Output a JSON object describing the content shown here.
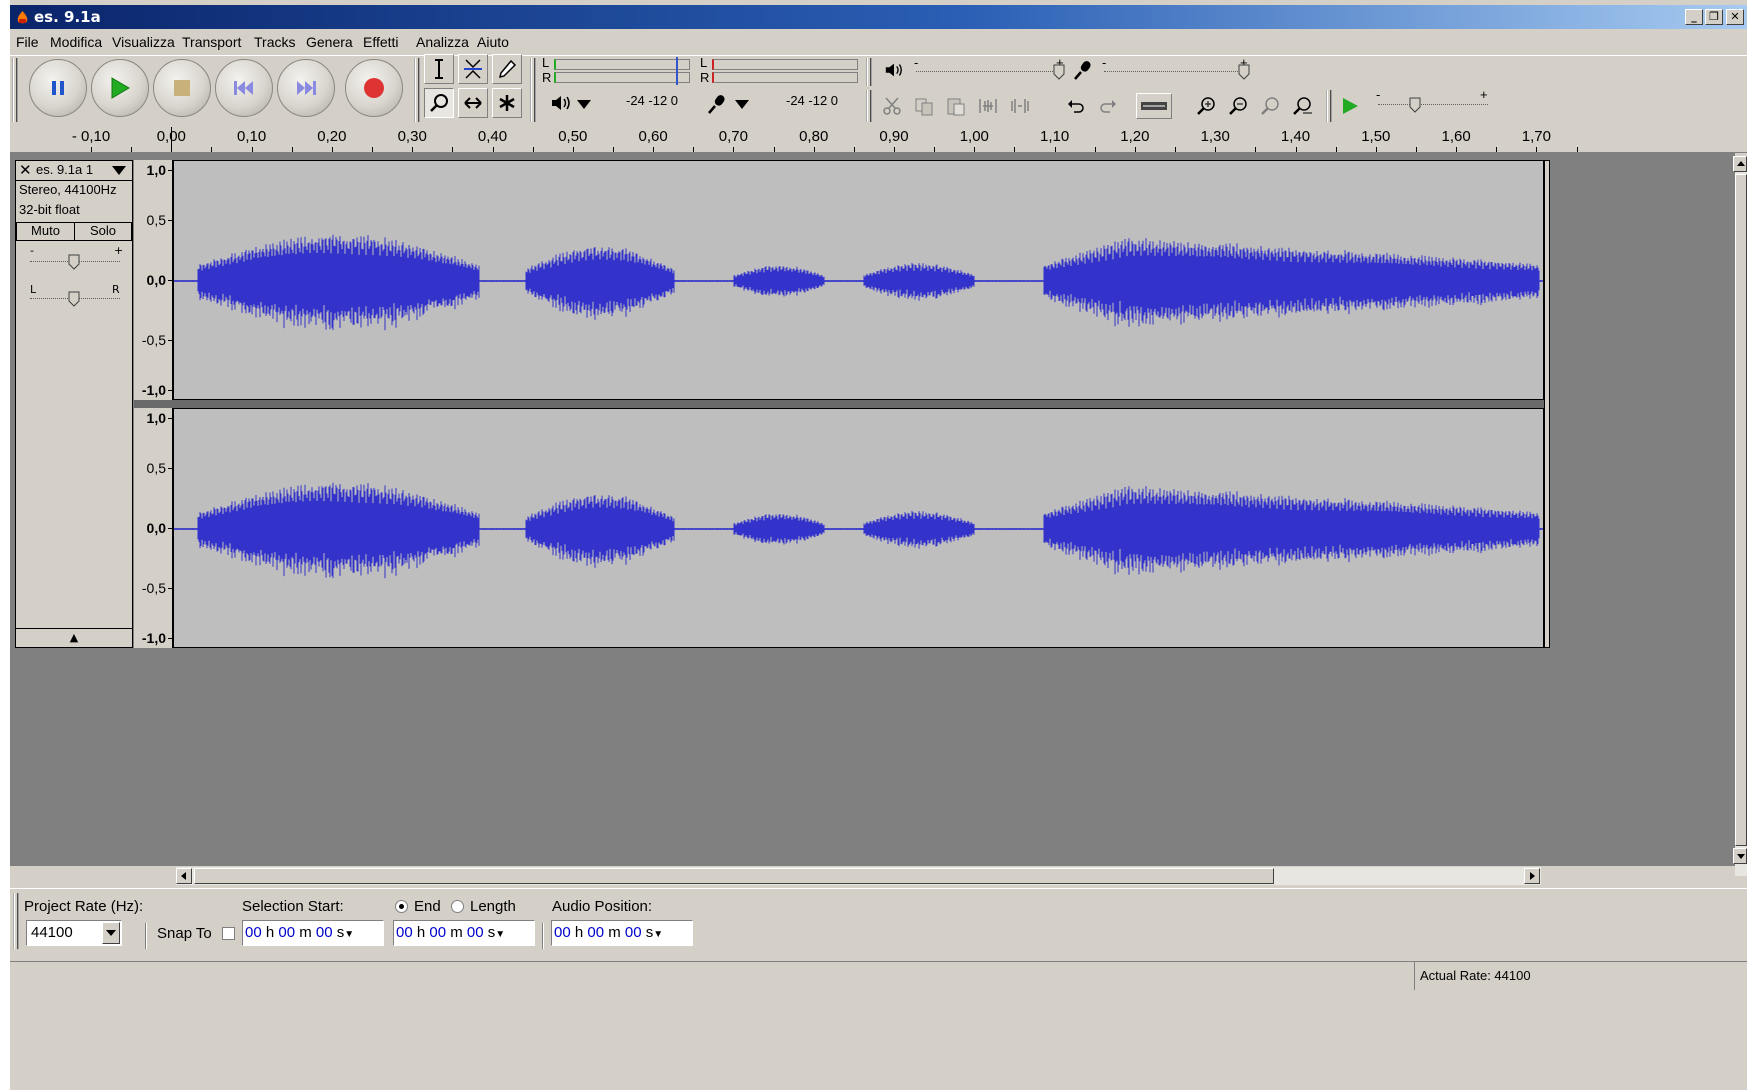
{
  "window": {
    "title": "es. 9.1a",
    "min_glyph": "_",
    "restore_glyph": "❐",
    "close_glyph": "✕"
  },
  "menu": [
    "File",
    "Modifica",
    "Visualizza",
    "Transport",
    "Tracks",
    "Genera",
    "Effetti",
    "Analizza",
    "Aiuto"
  ],
  "meters": {
    "play_channels": [
      "L",
      "R"
    ],
    "rec_channels": [
      "L",
      "R"
    ],
    "play_scale": "-24 -12  0",
    "rec_scale": "-24 -12  0"
  },
  "mixer": {
    "play_min": "-",
    "play_max": "+",
    "rec_min": "-",
    "rec_max": "+",
    "speed_min": "-",
    "speed_max": "+"
  },
  "ruler": {
    "labels": [
      "- 0,10",
      "0,00",
      "0,10",
      "0,20",
      "0,30",
      "0,40",
      "0,50",
      "0,60",
      "0,70",
      "0,80",
      "0,90",
      "1,00",
      "1,10",
      "1,20",
      "1,30",
      "1,40",
      "1,50",
      "1,60",
      "1,70"
    ]
  },
  "track": {
    "name": "es. 9.1a 1",
    "format": "Stereo, 44100Hz",
    "bits": "32-bit float",
    "mute_label": "Muto",
    "solo_label": "Solo",
    "gain_min": "-",
    "gain_max": "+",
    "pan_left": "L",
    "pan_right": "R",
    "collapse_glyph": "▲",
    "scale_labels": [
      "1,0",
      "0,5",
      "0,0",
      "-0,5",
      "-1,0"
    ]
  },
  "bottom": {
    "project_rate_label": "Project Rate (Hz):",
    "project_rate_value": "44100",
    "snap_label": "Snap To",
    "selection_start_label": "Selection Start:",
    "end_label": "End",
    "length_label": "Length",
    "audio_position_label": "Audio Position:",
    "time_digits": "00",
    "unit_h": "h",
    "unit_m": "m",
    "unit_s": "s"
  },
  "status": {
    "actual_rate": "Actual Rate: 44100"
  },
  "colors": {
    "waveform": "#3333cc",
    "waveform_bg": "#bebebe",
    "title_gradient_start": "#0a246a",
    "track_area_bg": "#808080"
  }
}
